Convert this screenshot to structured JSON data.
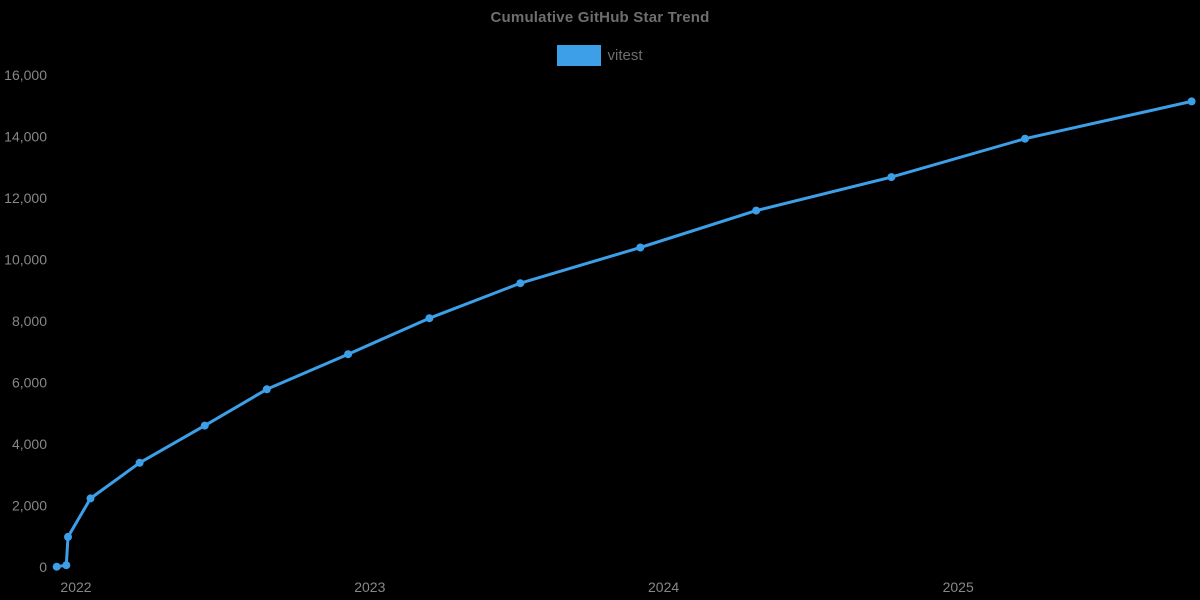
{
  "chart_data": {
    "type": "line",
    "title": "Cumulative GitHub Star Trend",
    "xlabel": "",
    "ylabel": "",
    "legend_position": "top-center",
    "grid": false,
    "background_color": "#000000",
    "title_color": "#6e6e6e",
    "tick_label_color": "#878787",
    "x_axis": {
      "type": "time",
      "ticks": [
        {
          "date": "2022-01-01",
          "label": "2022"
        },
        {
          "date": "2023-01-01",
          "label": "2023"
        },
        {
          "date": "2024-01-01",
          "label": "2024"
        },
        {
          "date": "2025-01-01",
          "label": "2025"
        }
      ]
    },
    "y_axis": {
      "range": [
        0,
        16000
      ],
      "ticks": [
        {
          "value": 0,
          "label": "0"
        },
        {
          "value": 2000,
          "label": "2,000"
        },
        {
          "value": 4000,
          "label": "4,000"
        },
        {
          "value": 6000,
          "label": "6,000"
        },
        {
          "value": 8000,
          "label": "8,000"
        },
        {
          "value": 10000,
          "label": "10,000"
        },
        {
          "value": 12000,
          "label": "12,000"
        },
        {
          "value": 14000,
          "label": "14,000"
        },
        {
          "value": 16000,
          "label": "16,000"
        }
      ]
    },
    "series": [
      {
        "name": "vitest",
        "color": "#3d9fe8",
        "points": [
          {
            "date": "2021-12-08",
            "stars": 10
          },
          {
            "date": "2021-12-20",
            "stars": 60
          },
          {
            "date": "2021-12-22",
            "stars": 980
          },
          {
            "date": "2022-01-19",
            "stars": 2230
          },
          {
            "date": "2022-03-21",
            "stars": 3390
          },
          {
            "date": "2022-06-10",
            "stars": 4600
          },
          {
            "date": "2022-08-26",
            "stars": 5780
          },
          {
            "date": "2022-12-05",
            "stars": 6920
          },
          {
            "date": "2023-03-16",
            "stars": 8090
          },
          {
            "date": "2023-07-07",
            "stars": 9230
          },
          {
            "date": "2023-12-03",
            "stars": 10390
          },
          {
            "date": "2024-04-25",
            "stars": 11590
          },
          {
            "date": "2024-10-10",
            "stars": 12680
          },
          {
            "date": "2025-03-25",
            "stars": 13930
          },
          {
            "date": "2025-10-18",
            "stars": 15140
          }
        ]
      }
    ]
  }
}
